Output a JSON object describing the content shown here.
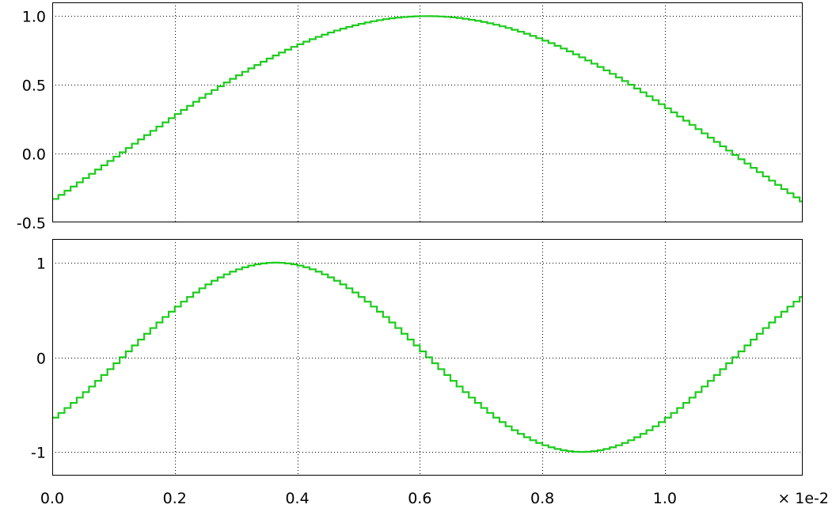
{
  "colors": {
    "trace": "#1ecb1e",
    "frame": "#000000",
    "grid": "#000000"
  },
  "x_axis": {
    "ticks": [
      0.0,
      0.2,
      0.4,
      0.6,
      0.8,
      1.0
    ],
    "tick_labels": [
      "0.0",
      "0.2",
      "0.4",
      "0.6",
      "0.8",
      "1.0"
    ],
    "range": [
      0.0,
      1.225
    ],
    "multiplier_label": "× 1e-2",
    "grid": true
  },
  "chart_data": [
    {
      "type": "line",
      "step": true,
      "xlim": [
        0.0,
        1.225
      ],
      "ylim": [
        -0.5,
        1.1
      ],
      "yticks": [
        -0.5,
        0.0,
        0.5,
        1.0
      ],
      "ytick_labels": [
        "-0.5",
        "0.0",
        "0.5",
        "1.0"
      ],
      "grid": true,
      "series": [
        {
          "shape": "sine",
          "amplitude": 1.0,
          "period": 2.0,
          "peak_x": 0.612,
          "x_start": 0.0,
          "x_end": 1.225,
          "step_width": 0.01,
          "y_start": -0.34,
          "y_end": -0.35
        }
      ]
    },
    {
      "type": "line",
      "step": true,
      "xlim": [
        0.0,
        1.225
      ],
      "ylim": [
        -1.25,
        1.25
      ],
      "yticks": [
        -1,
        0,
        1
      ],
      "ytick_labels": [
        "-1",
        "0",
        "1"
      ],
      "grid": true,
      "series": [
        {
          "shape": "sine",
          "amplitude": 1.0,
          "period": 1.0,
          "peak_x": 0.365,
          "x_start": 0.0,
          "x_end": 1.225,
          "step_width": 0.01,
          "y_start": -0.63,
          "y_end": 0.65
        }
      ]
    }
  ]
}
